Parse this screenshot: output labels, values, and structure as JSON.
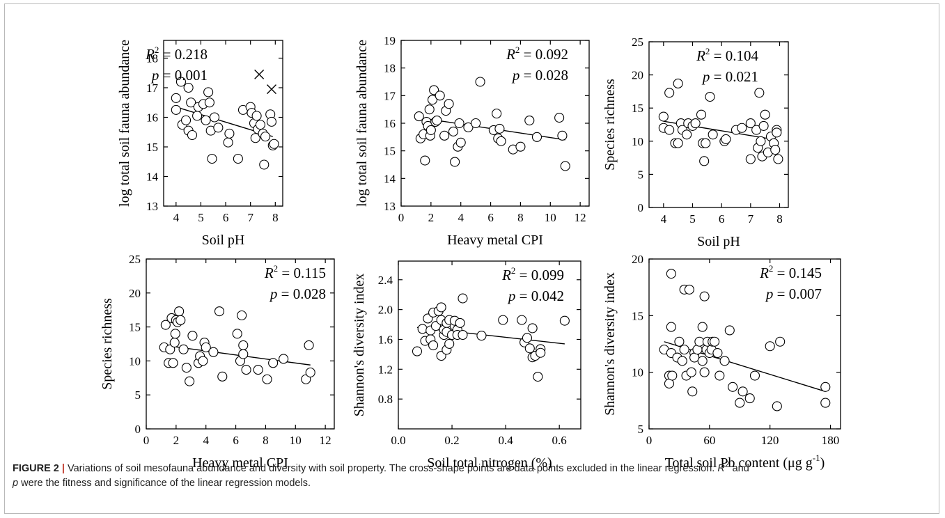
{
  "caption": {
    "label": "FIGURE 2",
    "separator": "|",
    "text1": "Variations of soil mesofauna abundance and diversity with soil property. The cross-shape points are data points excluded in the linear regression.",
    "r": "R",
    "sup": "2",
    "text2": "and",
    "p": "p",
    "text3": "were the fitness and significance of the linear regression models."
  },
  "chart_data": [
    {
      "type": "scatter",
      "xlabel": "Soil pH",
      "ylabel": "log total soil fauna abundance",
      "xlim": [
        3.5,
        8.3
      ],
      "ylim": [
        13,
        18.6
      ],
      "xticks": [
        4,
        5,
        6,
        7,
        8
      ],
      "yticks": [
        13,
        14,
        15,
        16,
        17,
        18
      ],
      "stat_r2": "= 0.218",
      "stat_p": "= 0.001",
      "fit": [
        [
          4.0,
          16.35
        ],
        [
          7.9,
          15.35
        ]
      ],
      "points": [
        [
          4.0,
          16.65
        ],
        [
          4.0,
          16.25
        ],
        [
          4.2,
          17.2
        ],
        [
          4.25,
          15.75
        ],
        [
          4.4,
          15.9
        ],
        [
          4.5,
          17.0
        ],
        [
          4.5,
          15.55
        ],
        [
          4.6,
          16.5
        ],
        [
          4.65,
          15.4
        ],
        [
          4.85,
          16.05
        ],
        [
          4.9,
          16.35
        ],
        [
          5.1,
          16.45
        ],
        [
          5.2,
          15.9
        ],
        [
          5.3,
          16.85
        ],
        [
          5.35,
          16.5
        ],
        [
          5.4,
          15.55
        ],
        [
          5.45,
          14.6
        ],
        [
          5.55,
          16.0
        ],
        [
          5.7,
          15.65
        ],
        [
          6.1,
          15.15
        ],
        [
          6.15,
          15.45
        ],
        [
          6.5,
          14.6
        ],
        [
          6.7,
          16.25
        ],
        [
          7.0,
          16.35
        ],
        [
          7.05,
          16.15
        ],
        [
          7.15,
          15.8
        ],
        [
          7.2,
          15.3
        ],
        [
          7.25,
          16.05
        ],
        [
          7.3,
          15.6
        ],
        [
          7.4,
          15.75
        ],
        [
          7.5,
          15.45
        ],
        [
          7.55,
          14.4
        ],
        [
          7.6,
          15.35
        ],
        [
          7.8,
          16.1
        ],
        [
          7.85,
          15.85
        ],
        [
          7.9,
          15.05
        ],
        [
          7.95,
          15.1
        ]
      ],
      "excluded": [
        [
          7.35,
          17.45
        ],
        [
          7.85,
          16.95
        ]
      ]
    },
    {
      "type": "scatter",
      "xlabel": "Heavy metal CPI",
      "ylabel": "log total soil fauna abundance",
      "xlim": [
        0,
        12.6
      ],
      "ylim": [
        13,
        19
      ],
      "xticks": [
        0,
        2,
        4,
        6,
        8,
        10,
        12
      ],
      "yticks": [
        13,
        14,
        15,
        16,
        17,
        18,
        19
      ],
      "stat_r2": "= 0.092",
      "stat_p": "= 0.028",
      "fit": [
        [
          1.2,
          16.2
        ],
        [
          11.0,
          15.4
        ]
      ],
      "points": [
        [
          1.2,
          16.25
        ],
        [
          1.3,
          15.45
        ],
        [
          1.5,
          15.6
        ],
        [
          1.6,
          14.65
        ],
        [
          1.7,
          16.05
        ],
        [
          1.8,
          15.9
        ],
        [
          1.9,
          16.5
        ],
        [
          1.95,
          15.55
        ],
        [
          2.0,
          15.75
        ],
        [
          2.1,
          16.85
        ],
        [
          2.2,
          17.2
        ],
        [
          2.3,
          16.05
        ],
        [
          2.4,
          16.1
        ],
        [
          2.6,
          17.0
        ],
        [
          2.9,
          15.55
        ],
        [
          3.0,
          16.45
        ],
        [
          3.2,
          16.7
        ],
        [
          3.5,
          15.7
        ],
        [
          3.6,
          14.6
        ],
        [
          3.8,
          15.15
        ],
        [
          3.9,
          16.0
        ],
        [
          4.0,
          15.3
        ],
        [
          4.5,
          15.85
        ],
        [
          5.0,
          16.0
        ],
        [
          5.3,
          17.5
        ],
        [
          6.2,
          15.75
        ],
        [
          6.4,
          16.35
        ],
        [
          6.5,
          15.45
        ],
        [
          6.6,
          15.8
        ],
        [
          6.7,
          15.35
        ],
        [
          7.5,
          15.05
        ],
        [
          8.0,
          15.15
        ],
        [
          8.6,
          16.1
        ],
        [
          9.1,
          15.5
        ],
        [
          10.6,
          16.2
        ],
        [
          10.8,
          15.55
        ],
        [
          11.0,
          14.45
        ]
      ],
      "excluded": []
    },
    {
      "type": "scatter",
      "xlabel": "Soil pH",
      "ylabel": "Species richness",
      "xlim": [
        3.5,
        8.3
      ],
      "ylim": [
        0,
        25
      ],
      "xticks": [
        4,
        5,
        6,
        7,
        8
      ],
      "yticks": [
        0,
        5,
        10,
        15,
        20,
        25
      ],
      "stat_r2": "= 0.104",
      "stat_p": "= 0.021",
      "fit": [
        [
          4.0,
          13.0
        ],
        [
          7.9,
          10.2
        ]
      ],
      "points": [
        [
          4.0,
          13.7
        ],
        [
          4.0,
          12.0
        ],
        [
          4.2,
          17.3
        ],
        [
          4.2,
          11.7
        ],
        [
          4.4,
          9.7
        ],
        [
          4.5,
          18.7
        ],
        [
          4.5,
          9.7
        ],
        [
          4.6,
          12.7
        ],
        [
          4.65,
          11.7
        ],
        [
          4.8,
          11.0
        ],
        [
          4.85,
          12.7
        ],
        [
          5.0,
          12.3
        ],
        [
          5.1,
          12.7
        ],
        [
          5.3,
          14.0
        ],
        [
          5.35,
          9.7
        ],
        [
          5.4,
          7.0
        ],
        [
          5.45,
          9.7
        ],
        [
          5.6,
          16.7
        ],
        [
          5.7,
          11.0
        ],
        [
          6.1,
          10.0
        ],
        [
          6.15,
          10.3
        ],
        [
          6.5,
          11.7
        ],
        [
          6.7,
          12.0
        ],
        [
          7.0,
          12.7
        ],
        [
          7.0,
          7.3
        ],
        [
          7.2,
          11.7
        ],
        [
          7.25,
          9.0
        ],
        [
          7.3,
          17.3
        ],
        [
          7.35,
          10.0
        ],
        [
          7.4,
          7.7
        ],
        [
          7.45,
          12.3
        ],
        [
          7.5,
          14.0
        ],
        [
          7.6,
          8.3
        ],
        [
          7.7,
          10.7
        ],
        [
          7.8,
          9.7
        ],
        [
          7.85,
          8.7
        ],
        [
          7.9,
          11.7
        ],
        [
          7.9,
          11.3
        ],
        [
          7.95,
          7.3
        ]
      ],
      "excluded": []
    },
    {
      "type": "scatter",
      "xlabel": "Heavy metal CPI",
      "ylabel": "Species richness",
      "xlim": [
        0,
        12.6
      ],
      "ylim": [
        0,
        25
      ],
      "xticks": [
        0,
        2,
        4,
        6,
        8,
        10,
        12
      ],
      "yticks": [
        0,
        5,
        10,
        15,
        20,
        25
      ],
      "stat_r2": "= 0.115",
      "stat_p": "= 0.028",
      "fit": [
        [
          1.2,
          12.3
        ],
        [
          11.0,
          9.4
        ]
      ],
      "points": [
        [
          1.2,
          12.0
        ],
        [
          1.3,
          15.3
        ],
        [
          1.5,
          9.7
        ],
        [
          1.6,
          11.7
        ],
        [
          1.7,
          16.3
        ],
        [
          1.8,
          9.7
        ],
        [
          1.9,
          12.7
        ],
        [
          1.95,
          14.0
        ],
        [
          2.0,
          16.0
        ],
        [
          2.1,
          15.7
        ],
        [
          2.2,
          17.3
        ],
        [
          2.3,
          16.0
        ],
        [
          2.5,
          11.7
        ],
        [
          2.7,
          9.0
        ],
        [
          2.9,
          7.0
        ],
        [
          3.1,
          13.7
        ],
        [
          3.5,
          9.7
        ],
        [
          3.6,
          10.7
        ],
        [
          3.8,
          10.0
        ],
        [
          3.9,
          12.7
        ],
        [
          4.0,
          12.0
        ],
        [
          4.5,
          11.3
        ],
        [
          4.9,
          17.3
        ],
        [
          5.1,
          7.7
        ],
        [
          6.1,
          14.0
        ],
        [
          6.3,
          10.0
        ],
        [
          6.4,
          16.7
        ],
        [
          6.5,
          12.3
        ],
        [
          6.5,
          11.0
        ],
        [
          6.7,
          8.7
        ],
        [
          7.5,
          8.7
        ],
        [
          8.1,
          7.3
        ],
        [
          8.5,
          9.7
        ],
        [
          9.2,
          10.3
        ],
        [
          10.7,
          7.3
        ],
        [
          10.9,
          12.3
        ],
        [
          11.0,
          8.3
        ]
      ],
      "excluded": []
    },
    {
      "type": "scatter",
      "xlabel": "Soil total nitrogen (%)",
      "ylabel": "Shannon's diversity index",
      "xlim": [
        0,
        0.68
      ],
      "ylim": [
        0.4,
        2.65
      ],
      "xticks": [
        0.0,
        0.2,
        0.4,
        0.6
      ],
      "yticks": [
        0.8,
        1.2,
        1.6,
        2.0,
        2.4
      ],
      "xtick_labels": [
        "0.0",
        "0.2",
        "0.4",
        "0.6"
      ],
      "stat_r2": "= 0.099",
      "stat_p": "= 0.042",
      "fit": [
        [
          0.07,
          1.76
        ],
        [
          0.62,
          1.54
        ]
      ],
      "points": [
        [
          0.07,
          1.44
        ],
        [
          0.09,
          1.74
        ],
        [
          0.1,
          1.58
        ],
        [
          0.11,
          1.88
        ],
        [
          0.12,
          1.72
        ],
        [
          0.12,
          1.6
        ],
        [
          0.13,
          1.52
        ],
        [
          0.13,
          1.96
        ],
        [
          0.14,
          1.78
        ],
        [
          0.15,
          1.98
        ],
        [
          0.16,
          2.03
        ],
        [
          0.16,
          1.38
        ],
        [
          0.16,
          1.86
        ],
        [
          0.17,
          1.66
        ],
        [
          0.17,
          1.73
        ],
        [
          0.18,
          1.82
        ],
        [
          0.18,
          1.46
        ],
        [
          0.18,
          1.7
        ],
        [
          0.19,
          1.54
        ],
        [
          0.19,
          1.86
        ],
        [
          0.2,
          1.66
        ],
        [
          0.21,
          1.78
        ],
        [
          0.21,
          1.85
        ],
        [
          0.22,
          1.73
        ],
        [
          0.22,
          1.66
        ],
        [
          0.23,
          1.82
        ],
        [
          0.24,
          2.15
        ],
        [
          0.24,
          1.66
        ],
        [
          0.31,
          1.65
        ],
        [
          0.39,
          1.86
        ],
        [
          0.46,
          1.86
        ],
        [
          0.47,
          1.56
        ],
        [
          0.48,
          1.62
        ],
        [
          0.49,
          1.48
        ],
        [
          0.5,
          1.36
        ],
        [
          0.5,
          1.75
        ],
        [
          0.51,
          1.38
        ],
        [
          0.52,
          1.1
        ],
        [
          0.53,
          1.47
        ],
        [
          0.53,
          1.42
        ],
        [
          0.62,
          1.85
        ]
      ],
      "excluded": []
    },
    {
      "type": "scatter",
      "xlabel": "Total soil Pb content (μg g",
      "xlabel_sup": "-1",
      "xlabel_end": ")",
      "ylabel": "Shannon's diversity index",
      "xlim": [
        0,
        190
      ],
      "ylim": [
        5,
        20
      ],
      "xticks": [
        0,
        60,
        120,
        180
      ],
      "yticks": [
        5,
        10,
        15,
        20
      ],
      "stat_r2": "= 0.145",
      "stat_p": "= 0.007",
      "fit": [
        [
          15,
          12.7
        ],
        [
          175,
          8.3
        ]
      ],
      "points": [
        [
          15,
          12.0
        ],
        [
          20,
          9.7
        ],
        [
          20,
          9.0
        ],
        [
          22,
          18.7
        ],
        [
          22,
          14.0
        ],
        [
          22,
          11.7
        ],
        [
          23,
          9.7
        ],
        [
          28,
          11.3
        ],
        [
          30,
          12.7
        ],
        [
          33,
          11.0
        ],
        [
          35,
          17.3
        ],
        [
          35,
          12.0
        ],
        [
          37,
          9.7
        ],
        [
          40,
          17.3
        ],
        [
          42,
          10.0
        ],
        [
          43,
          8.3
        ],
        [
          45,
          11.7
        ],
        [
          45,
          11.3
        ],
        [
          48,
          12.0
        ],
        [
          50,
          12.7
        ],
        [
          53,
          14.0
        ],
        [
          53,
          11.0
        ],
        [
          55,
          16.7
        ],
        [
          55,
          10.0
        ],
        [
          57,
          12.0
        ],
        [
          58,
          12.7
        ],
        [
          60,
          11.7
        ],
        [
          62,
          12.0
        ],
        [
          63,
          12.7
        ],
        [
          65,
          12.7
        ],
        [
          68,
          11.7
        ],
        [
          70,
          9.7
        ],
        [
          75,
          11.0
        ],
        [
          80,
          13.7
        ],
        [
          83,
          8.7
        ],
        [
          90,
          7.3
        ],
        [
          93,
          8.3
        ],
        [
          100,
          7.7
        ],
        [
          105,
          9.7
        ],
        [
          120,
          12.3
        ],
        [
          127,
          7.0
        ],
        [
          130,
          12.7
        ],
        [
          175,
          8.7
        ],
        [
          175,
          7.3
        ]
      ],
      "excluded": []
    }
  ]
}
